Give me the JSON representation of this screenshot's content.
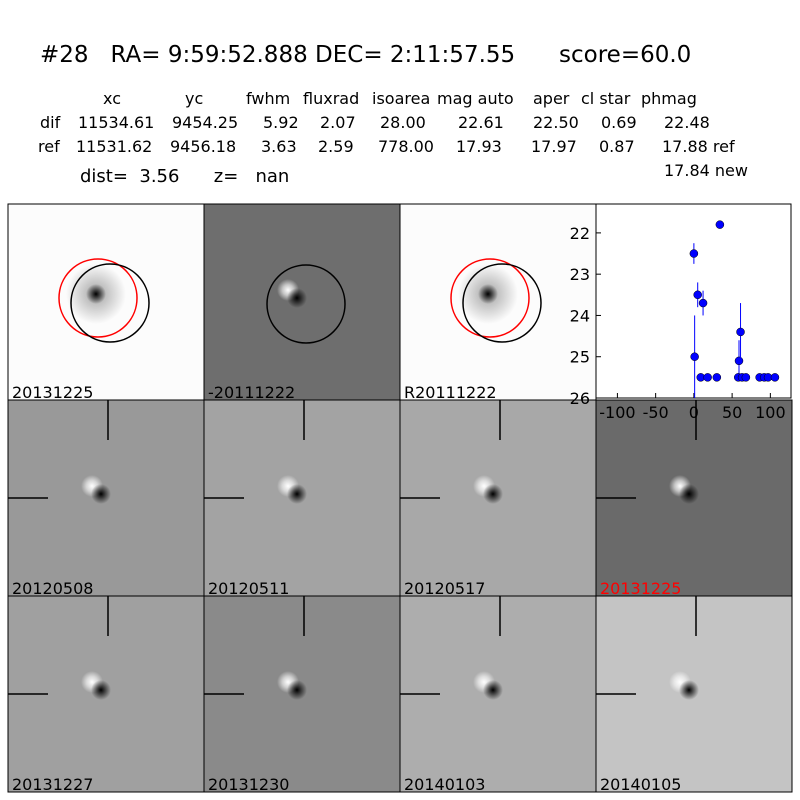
{
  "header": {
    "title": "#28   RA= 9:59:52.888 DEC= 2:11:57.55      score=60.0",
    "dist": "dist=  3.56      z=   nan"
  },
  "table": {
    "columns": [
      "xc",
      "yc",
      "fwhm",
      "fluxrad",
      "isoarea",
      "mag auto",
      "aper",
      "cl star",
      "phmag"
    ],
    "rows": [
      [
        "dif",
        "11534.61",
        "9454.25",
        "5.92",
        "2.07",
        "28.00",
        "22.61",
        "22.50",
        "0.69",
        "22.48"
      ],
      [
        "ref",
        "11531.62",
        "9456.18",
        "3.63",
        "2.59",
        "778.00",
        "17.93",
        "17.97",
        "0.87",
        "17.88 ref"
      ]
    ],
    "extra": "17.84 new"
  },
  "panels": [
    {
      "label": "20131225"
    },
    {
      "label": "-20111222"
    },
    {
      "label": "R20111222"
    },
    {
      "label": "20120508"
    },
    {
      "label": "20120511"
    },
    {
      "label": "20120517"
    },
    {
      "label": "20131225",
      "label_color": "#ff0000"
    },
    {
      "label": "20131227"
    },
    {
      "label": "20131230"
    },
    {
      "label": "20140103"
    },
    {
      "label": "20140105"
    }
  ],
  "chart_data": {
    "type": "scatter",
    "color": "#0000ff",
    "x": [
      0,
      1,
      5,
      12,
      9,
      18,
      30,
      34,
      59,
      61,
      58,
      63,
      68,
      86,
      92,
      97,
      106
    ],
    "values": [
      22.5,
      25.0,
      23.5,
      23.7,
      25.5,
      25.5,
      25.5,
      21.8,
      25.1,
      24.4,
      25.5,
      25.5,
      25.5,
      25.5,
      25.5,
      25.5,
      25.5
    ],
    "errors": [
      0.25,
      1.0,
      0.3,
      0.3,
      0.1,
      0.05,
      0.05,
      0.05,
      0.5,
      0.7,
      0.1,
      0.05,
      0.05,
      0.05,
      0.05,
      0.05,
      0.05
    ],
    "xlim": [
      -128,
      127
    ],
    "ylim": [
      26,
      21.3
    ],
    "xticks": [
      -100,
      -50,
      0,
      50,
      100
    ],
    "yticks": [
      22,
      23,
      24,
      25,
      26
    ]
  }
}
